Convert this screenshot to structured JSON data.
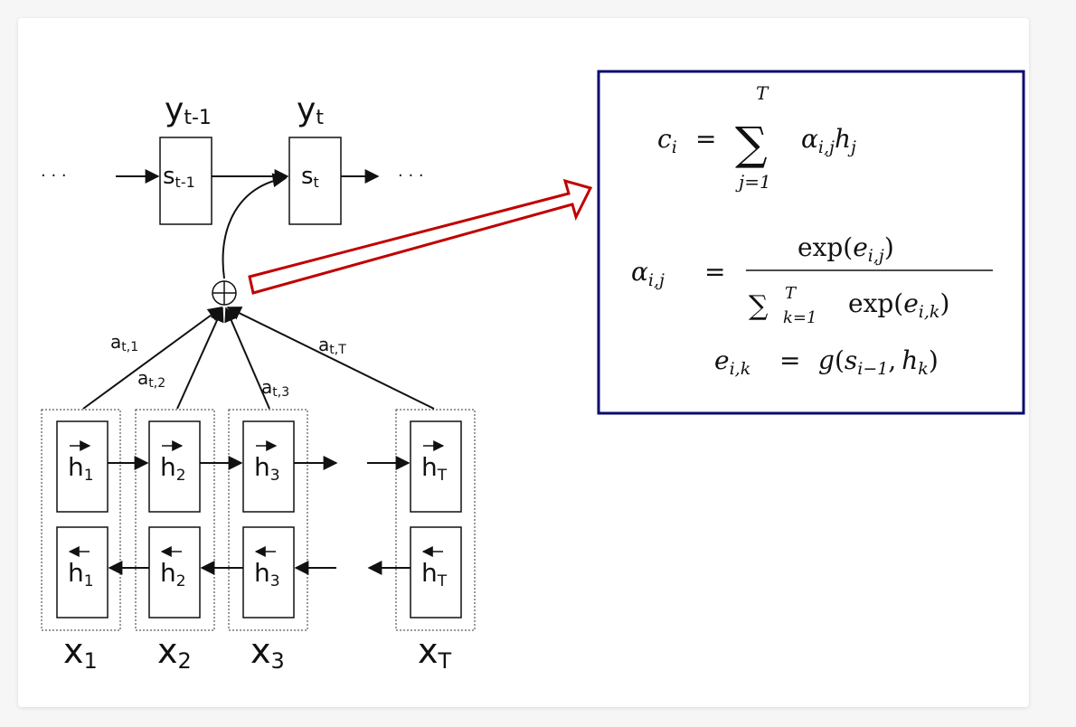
{
  "diagram": {
    "outputs": [
      {
        "base": "y",
        "sub": "t-1"
      },
      {
        "base": "y",
        "sub": "t"
      }
    ],
    "states": [
      {
        "base": "s",
        "sub": "t-1"
      },
      {
        "base": "s",
        "sub": "t"
      }
    ],
    "weights": [
      {
        "base": "a",
        "sub": "t,1"
      },
      {
        "base": "a",
        "sub": "t,2"
      },
      {
        "base": "a",
        "sub": "t,3"
      },
      {
        "base": "a",
        "sub": "t,T"
      }
    ],
    "forward_states": [
      {
        "base": "h",
        "sub": "1"
      },
      {
        "base": "h",
        "sub": "2"
      },
      {
        "base": "h",
        "sub": "3"
      },
      {
        "base": "h",
        "sub": "T"
      }
    ],
    "backward_states": [
      {
        "base": "h",
        "sub": "1"
      },
      {
        "base": "h",
        "sub": "2"
      },
      {
        "base": "h",
        "sub": "3"
      },
      {
        "base": "h",
        "sub": "T"
      }
    ],
    "inputs": [
      {
        "base": "x",
        "sub": "1"
      },
      {
        "base": "x",
        "sub": "2"
      },
      {
        "base": "x",
        "sub": "3"
      },
      {
        "base": "x",
        "sub": "T"
      }
    ],
    "sum_symbol": "⊕",
    "ellipsis": "· · ·"
  },
  "equations": {
    "eq1": {
      "lhs_base": "c",
      "lhs_sub": "i",
      "equals": "=",
      "sum": "∑",
      "sum_top": "T",
      "sum_bottom": "j=1",
      "term": "α",
      "term_sub": "i,j",
      "factor": "h",
      "factor_sub": "j"
    },
    "eq2": {
      "lhs_base": "α",
      "lhs_sub": "i,j",
      "equals": "=",
      "num": "exp(",
      "num_var": "e",
      "num_sub": "i,j",
      "num_close": ")",
      "den_sum": "∑",
      "den_top": "T",
      "den_bottom": "k=1",
      "den": "exp(",
      "den_var": "e",
      "den_sub": "i,k",
      "den_close": ")"
    },
    "eq3": {
      "lhs_base": "e",
      "lhs_sub": "i,k",
      "equals": "=",
      "fn": "g",
      "open": "(",
      "arg1": "s",
      "arg1_sub": "i−1",
      "comma": ",",
      "arg2": "h",
      "arg2_sub": "k",
      "close": ")"
    }
  }
}
